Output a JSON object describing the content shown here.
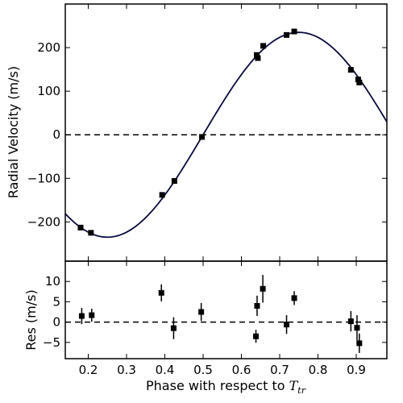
{
  "chart_data": [
    {
      "type": "scatter",
      "panel": "top",
      "ylabel": "Radial Velocity (m/s)",
      "xlim": [
        0.14,
        0.98
      ],
      "ylim": [
        -290,
        300
      ],
      "yticks": [
        200,
        100,
        0,
        -100,
        -200
      ],
      "ytick_labels": [
        "200",
        "100",
        "0",
        "−100",
        "−200"
      ],
      "zero_line": {
        "y": 0,
        "style": "dashed"
      },
      "model_curve": {
        "type": "sinusoid",
        "amplitude": 235,
        "offset": 0,
        "min_phase": 0.25,
        "period": 1.0
      },
      "series": [
        {
          "x": [
            0.18,
            0.207,
            0.393,
            0.425,
            0.497,
            0.64,
            0.643,
            0.657,
            0.718,
            0.738,
            0.886,
            0.905,
            0.908
          ],
          "y": [
            -213,
            -225,
            -138,
            -106,
            -5,
            183,
            176,
            204,
            229,
            237,
            149,
            127,
            120
          ]
        }
      ],
      "grid": false,
      "legend": "none"
    },
    {
      "type": "scatter",
      "panel": "bottom",
      "ylabel": "Res (m/s)",
      "xlabel": "Phase with respect to ",
      "xlabel_symbol": "T",
      "xlabel_subscript": "tr",
      "xlim": [
        0.14,
        0.98
      ],
      "ylim": [
        -9,
        15
      ],
      "yticks": [
        10,
        5,
        0,
        -5
      ],
      "ytick_labels": [
        "10",
        "5",
        "0",
        "−5"
      ],
      "xticks": [
        0.2,
        0.3,
        0.4,
        0.5,
        0.6,
        0.7,
        0.8,
        0.9
      ],
      "xtick_labels": [
        "0.2",
        "0.3",
        "0.4",
        "0.5",
        "0.6",
        "0.7",
        "0.8",
        "0.9"
      ],
      "zero_line": {
        "y": 0,
        "style": "dashed"
      },
      "series": [
        {
          "x": [
            0.183,
            0.209,
            0.391,
            0.423,
            0.495,
            0.638,
            0.641,
            0.656,
            0.718,
            0.738,
            0.886,
            0.902,
            0.908
          ],
          "y": [
            1.5,
            1.7,
            7.2,
            -1.5,
            2.5,
            -3.5,
            4.0,
            8.2,
            -0.6,
            5.9,
            0.2,
            -1.4,
            -5.2
          ],
          "err": [
            2.0,
            1.6,
            2.1,
            2.7,
            2.2,
            1.6,
            2.5,
            3.4,
            2.3,
            1.7,
            2.5,
            3.1,
            2.4
          ]
        }
      ],
      "grid": false,
      "legend": "none"
    }
  ]
}
